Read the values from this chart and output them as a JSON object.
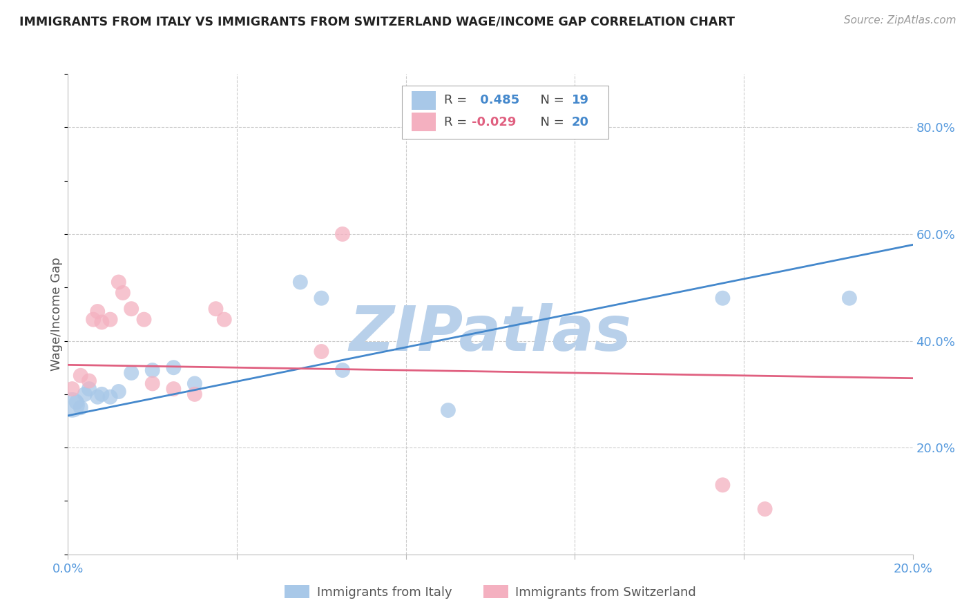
{
  "title": "IMMIGRANTS FROM ITALY VS IMMIGRANTS FROM SWITZERLAND WAGE/INCOME GAP CORRELATION CHART",
  "source": "Source: ZipAtlas.com",
  "ylabel": "Wage/Income Gap",
  "right_ytick_vals": [
    0.8,
    0.6,
    0.4,
    0.2
  ],
  "xlim": [
    0.0,
    0.2
  ],
  "ylim": [
    0.0,
    0.9
  ],
  "watermark": "ZIPatlas",
  "blue_scatter_x": [
    0.001,
    0.002,
    0.003,
    0.004,
    0.005,
    0.007,
    0.008,
    0.01,
    0.012,
    0.015,
    0.02,
    0.025,
    0.03,
    0.055,
    0.06,
    0.065,
    0.09,
    0.155,
    0.185
  ],
  "blue_scatter_y": [
    0.28,
    0.285,
    0.275,
    0.3,
    0.31,
    0.295,
    0.3,
    0.295,
    0.305,
    0.34,
    0.345,
    0.35,
    0.32,
    0.51,
    0.48,
    0.345,
    0.27,
    0.48,
    0.48
  ],
  "blue_scatter_size": [
    700,
    250,
    250,
    250,
    250,
    250,
    250,
    250,
    250,
    250,
    250,
    250,
    250,
    250,
    250,
    250,
    250,
    250,
    250
  ],
  "pink_scatter_x": [
    0.001,
    0.003,
    0.005,
    0.006,
    0.007,
    0.008,
    0.01,
    0.012,
    0.013,
    0.015,
    0.018,
    0.02,
    0.025,
    0.03,
    0.035,
    0.037,
    0.06,
    0.065,
    0.155,
    0.165
  ],
  "pink_scatter_y": [
    0.31,
    0.335,
    0.325,
    0.44,
    0.455,
    0.435,
    0.44,
    0.51,
    0.49,
    0.46,
    0.44,
    0.32,
    0.31,
    0.3,
    0.46,
    0.44,
    0.38,
    0.6,
    0.13,
    0.085
  ],
  "pink_scatter_size": [
    250,
    250,
    250,
    250,
    250,
    250,
    250,
    250,
    250,
    250,
    250,
    250,
    250,
    250,
    250,
    250,
    250,
    250,
    250,
    250
  ],
  "blue_line_x": [
    0.0,
    0.2
  ],
  "blue_line_y": [
    0.26,
    0.58
  ],
  "pink_line_x": [
    0.0,
    0.2
  ],
  "pink_line_y": [
    0.355,
    0.33
  ],
  "blue_color": "#a8c8e8",
  "pink_color": "#f4b0c0",
  "blue_line_color": "#4488cc",
  "pink_line_color": "#e06080",
  "grid_color": "#cccccc",
  "axis_color": "#5599dd",
  "title_color": "#222222",
  "watermark_color": "#b8d0ea",
  "bg_color": "#ffffff",
  "legend_label_italy": "Immigrants from Italy",
  "legend_label_swiss": "Immigrants from Switzerland"
}
